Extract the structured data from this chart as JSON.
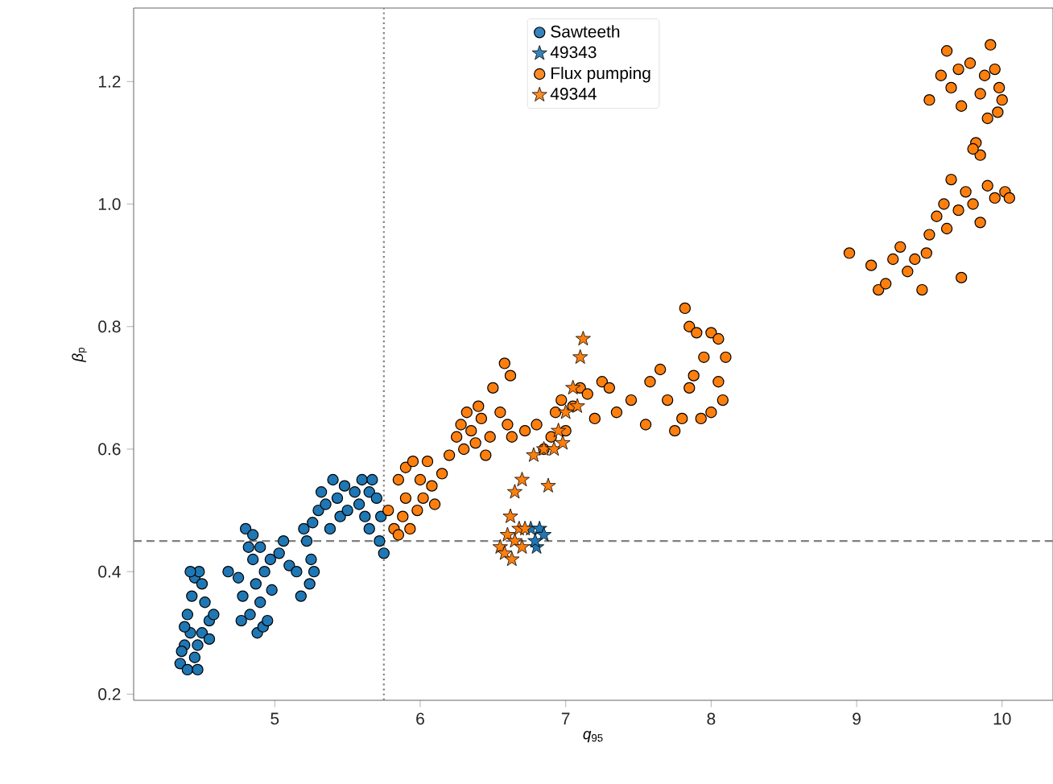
{
  "chart_data": {
    "type": "scatter",
    "xlabel": "*q*$_{95}$",
    "ylabel": "*β*$_{p}$",
    "xlim": [
      4.03,
      10.35
    ],
    "ylim": [
      0.19,
      1.32
    ],
    "xticks": [
      5,
      6,
      7,
      8,
      9,
      10
    ],
    "yticks": [
      0.2,
      0.4,
      0.6,
      0.8,
      {
        "value": 1,
        "label": "1.0"
      },
      1.2
    ],
    "legend": "top center",
    "grid": false,
    "ref_lines": [
      {
        "axis": "x",
        "value": 5.75,
        "color": "#808080",
        "line_style": "dotted"
      },
      {
        "axis": "y",
        "value": 0.45,
        "color": "#808080",
        "line_style": "dashed"
      }
    ],
    "series": [
      {
        "name": "Sawteeth",
        "color": "#1f77b4",
        "marker": "circle",
        "x": [
          4.35,
          4.38,
          4.4,
          4.42,
          4.45,
          4.47,
          4.4,
          4.43,
          4.45,
          4.48,
          4.5,
          4.52,
          4.55,
          4.5,
          4.47,
          4.55,
          4.58,
          4.42,
          4.38,
          4.36,
          4.68,
          4.75,
          4.8,
          4.82,
          4.85,
          4.78,
          4.77,
          4.83,
          4.88,
          4.92,
          4.95,
          4.9,
          4.87,
          4.93,
          4.97,
          4.85,
          4.9,
          4.98,
          5.03,
          5.06,
          5.1,
          5.15,
          5.18,
          5.2,
          5.22,
          5.25,
          5.24,
          5.27,
          5.26,
          5.3,
          5.32,
          5.35,
          5.4,
          5.43,
          5.45,
          5.38,
          5.48,
          5.5,
          5.55,
          5.58,
          5.6,
          5.62,
          5.65,
          5.67,
          5.7,
          5.65,
          5.72,
          5.75,
          5.73
        ],
        "values": [
          0.25,
          0.28,
          0.24,
          0.3,
          0.26,
          0.24,
          0.33,
          0.36,
          0.39,
          0.4,
          0.38,
          0.35,
          0.32,
          0.3,
          0.28,
          0.29,
          0.33,
          0.4,
          0.31,
          0.27,
          0.4,
          0.39,
          0.47,
          0.44,
          0.42,
          0.36,
          0.32,
          0.33,
          0.3,
          0.31,
          0.32,
          0.35,
          0.38,
          0.4,
          0.42,
          0.46,
          0.44,
          0.37,
          0.43,
          0.45,
          0.41,
          0.4,
          0.36,
          0.47,
          0.45,
          0.42,
          0.38,
          0.4,
          0.48,
          0.5,
          0.53,
          0.51,
          0.55,
          0.52,
          0.49,
          0.47,
          0.54,
          0.5,
          0.53,
          0.51,
          0.55,
          0.49,
          0.53,
          0.55,
          0.52,
          0.47,
          0.45,
          0.43,
          0.49
        ]
      },
      {
        "name": "49343",
        "color": "#1f77b4",
        "marker": "star",
        "x": [
          6.76,
          6.8,
          6.82,
          6.85,
          6.79
        ],
        "values": [
          0.47,
          0.44,
          0.47,
          0.46,
          0.45
        ]
      },
      {
        "name": "Flux pumping",
        "color": "#ff7f0e",
        "marker": "circle",
        "x": [
          5.78,
          5.82,
          5.85,
          5.88,
          5.9,
          5.85,
          5.9,
          5.95,
          6.0,
          5.98,
          6.02,
          6.05,
          6.08,
          6.1,
          5.93,
          6.15,
          6.2,
          6.25,
          6.28,
          6.3,
          6.32,
          6.35,
          6.38,
          6.4,
          6.42,
          6.45,
          6.48,
          6.5,
          6.55,
          6.58,
          6.62,
          6.6,
          6.63,
          6.72,
          6.8,
          6.85,
          6.9,
          6.93,
          6.97,
          7.0,
          7.05,
          7.1,
          7.15,
          7.2,
          7.25,
          7.3,
          7.35,
          7.45,
          7.55,
          7.58,
          7.65,
          7.7,
          7.75,
          7.8,
          7.85,
          7.82,
          7.85,
          7.9,
          7.95,
          8.0,
          8.05,
          8.05,
          8.08,
          8.1,
          8.0,
          7.93,
          7.88,
          8.95,
          9.1,
          9.15,
          9.2,
          9.25,
          9.3,
          9.35,
          9.4,
          9.45,
          9.48,
          9.5,
          9.55,
          9.6,
          9.62,
          9.65,
          9.7,
          9.72,
          9.75,
          9.8,
          9.85,
          9.9,
          9.95,
          10.02,
          10.05,
          9.85,
          9.82,
          9.8,
          9.5,
          9.58,
          9.62,
          9.65,
          9.7,
          9.72,
          9.78,
          9.85,
          9.88,
          9.92,
          9.95,
          9.98,
          9.97,
          10.0,
          9.9
        ],
        "values": [
          0.5,
          0.47,
          0.46,
          0.49,
          0.52,
          0.55,
          0.57,
          0.58,
          0.55,
          0.5,
          0.52,
          0.58,
          0.54,
          0.51,
          0.47,
          0.56,
          0.59,
          0.62,
          0.64,
          0.6,
          0.66,
          0.63,
          0.61,
          0.67,
          0.65,
          0.59,
          0.62,
          0.7,
          0.66,
          0.74,
          0.72,
          0.64,
          0.62,
          0.63,
          0.64,
          0.6,
          0.62,
          0.66,
          0.68,
          0.63,
          0.67,
          0.7,
          0.69,
          0.65,
          0.71,
          0.7,
          0.66,
          0.68,
          0.64,
          0.71,
          0.73,
          0.68,
          0.63,
          0.65,
          0.7,
          0.83,
          0.8,
          0.79,
          0.75,
          0.79,
          0.78,
          0.71,
          0.68,
          0.75,
          0.66,
          0.65,
          0.72,
          0.92,
          0.9,
          0.86,
          0.87,
          0.91,
          0.93,
          0.89,
          0.91,
          0.86,
          0.92,
          0.95,
          0.98,
          1.0,
          0.96,
          1.04,
          0.99,
          0.88,
          1.02,
          1.0,
          0.97,
          1.03,
          1.01,
          1.02,
          1.01,
          1.08,
          1.1,
          1.09,
          1.17,
          1.21,
          1.25,
          1.19,
          1.22,
          1.16,
          1.23,
          1.18,
          1.21,
          1.26,
          1.22,
          1.19,
          1.15,
          1.17,
          1.14
        ]
      },
      {
        "name": "49344",
        "color": "#ff7f0e",
        "marker": "star",
        "x": [
          6.55,
          6.58,
          6.6,
          6.62,
          6.65,
          6.68,
          6.7,
          6.63,
          6.72,
          6.65,
          6.7,
          6.78,
          6.85,
          6.88,
          6.92,
          6.95,
          7.0,
          7.05,
          7.1,
          7.12,
          7.08,
          6.98
        ],
        "values": [
          0.44,
          0.43,
          0.46,
          0.49,
          0.45,
          0.47,
          0.44,
          0.42,
          0.47,
          0.53,
          0.55,
          0.59,
          0.6,
          0.54,
          0.6,
          0.63,
          0.66,
          0.7,
          0.75,
          0.78,
          0.67,
          0.61
        ]
      }
    ]
  }
}
